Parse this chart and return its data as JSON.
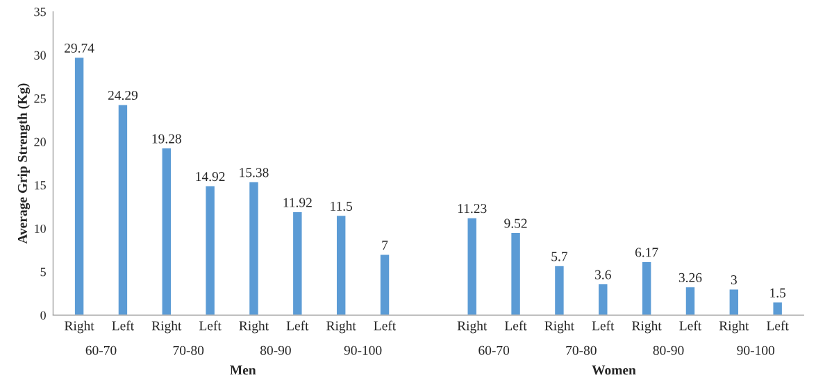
{
  "chart_data": {
    "type": "bar",
    "ylabel": "Average Grip Strength (Kg)",
    "categories": [
      "Right",
      "Left",
      "Right",
      "Left",
      "Right",
      "Left",
      "Right",
      "Left",
      null,
      "Right",
      "Left",
      "Right",
      "Left",
      "Right",
      "Left",
      "Right",
      "Left"
    ],
    "values": [
      29.74,
      24.29,
      19.28,
      14.92,
      15.38,
      11.92,
      11.5,
      7,
      null,
      11.23,
      9.52,
      5.7,
      3.6,
      6.17,
      3.26,
      3,
      1.5
    ],
    "color": "#5b9bd5",
    "ylim": [
      0,
      35
    ],
    "yticks": [
      0,
      5,
      10,
      15,
      20,
      25,
      30,
      35
    ],
    "data_labels": true,
    "grid": false,
    "annotations": [
      "60-70",
      "70-80",
      "80-90",
      "90-100",
      "60-70",
      "70-80",
      "80-90",
      "90-100",
      "Men",
      "Women"
    ]
  }
}
